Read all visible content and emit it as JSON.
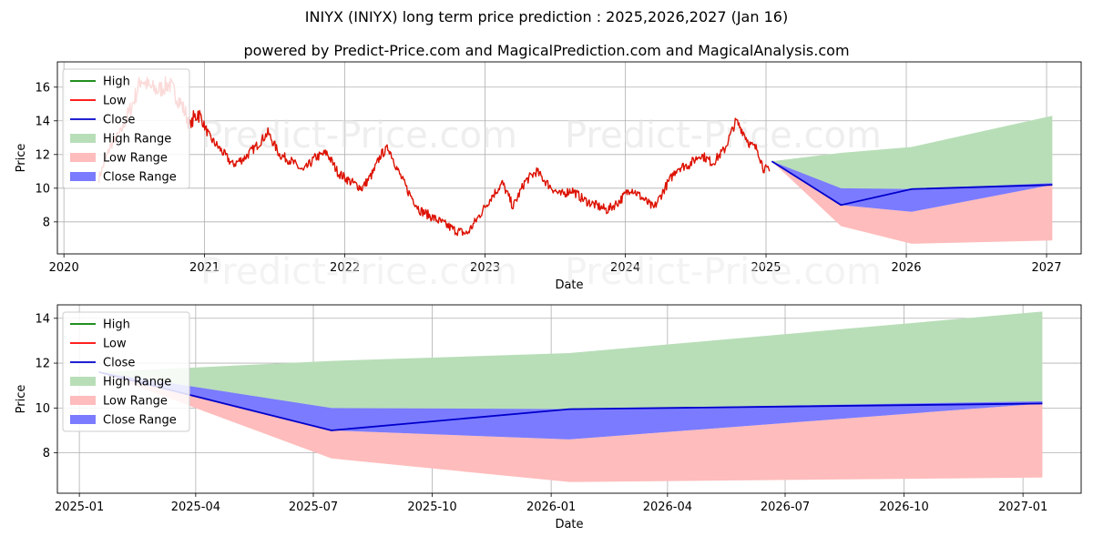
{
  "title": "INIYX (INIYX) long term price prediction : 2025,2026,2027 (Jan 16)",
  "subtitle": "powered by Predict-Price.com and MagicalPrediction.com and MagicalAnalysis.com",
  "watermark": "Predict-Price.com",
  "colors": {
    "high": "#008000",
    "low": "#ff0000",
    "close": "#0000cc",
    "high_range": "#b8deb8",
    "low_range": "#ffbcbc",
    "close_range": "#7b7bff",
    "history": "#dd1100"
  },
  "chart_data": [
    {
      "type": "line",
      "xlabel": "Date",
      "ylabel": "Price",
      "xlim": [
        "2019-12-15",
        "2027-04-01"
      ],
      "ylim": [
        6.1,
        17.5
      ],
      "yticks": [
        8,
        10,
        12,
        14,
        16
      ],
      "xticks": [
        {
          "date": "2020-01-01",
          "label": "2020"
        },
        {
          "date": "2021-01-01",
          "label": "2021"
        },
        {
          "date": "2022-01-01",
          "label": "2022"
        },
        {
          "date": "2023-01-01",
          "label": "2023"
        },
        {
          "date": "2024-01-01",
          "label": "2024"
        },
        {
          "date": "2025-01-01",
          "label": "2025"
        },
        {
          "date": "2026-01-01",
          "label": "2026"
        },
        {
          "date": "2027-01-01",
          "label": "2027"
        }
      ],
      "grid": true,
      "legend": "upper-left",
      "legend_entries": [
        "High",
        "Low",
        "Close",
        "High Range",
        "Low Range",
        "Close Range"
      ],
      "history": {
        "name": "Low",
        "x": [
          "2020-04-01",
          "2020-05-01",
          "2020-06-01",
          "2020-07-01",
          "2020-07-20",
          "2020-08-10",
          "2020-09-01",
          "2020-10-01",
          "2020-11-01",
          "2020-11-25",
          "2020-12-15",
          "2021-01-15",
          "2021-02-15",
          "2021-03-15",
          "2021-04-15",
          "2021-05-20",
          "2021-06-15",
          "2021-07-15",
          "2021-08-15",
          "2021-09-15",
          "2021-10-15",
          "2021-11-15",
          "2021-12-15",
          "2022-01-15",
          "2022-02-15",
          "2022-03-15",
          "2022-04-05",
          "2022-04-25",
          "2022-05-20",
          "2022-06-15",
          "2022-07-15",
          "2022-08-15",
          "2022-09-15",
          "2022-10-15",
          "2022-11-15",
          "2022-12-15",
          "2023-01-15",
          "2023-02-15",
          "2023-03-15",
          "2023-04-15",
          "2023-05-15",
          "2023-06-15",
          "2023-07-15",
          "2023-08-15",
          "2023-09-15",
          "2023-10-15",
          "2023-11-15",
          "2023-12-15",
          "2024-01-15",
          "2024-02-15",
          "2024-03-15",
          "2024-04-15",
          "2024-05-15",
          "2024-06-15",
          "2024-07-15",
          "2024-08-15",
          "2024-09-15",
          "2024-10-15",
          "2024-11-01",
          "2024-11-20",
          "2024-12-10",
          "2024-12-25",
          "2025-01-10"
        ],
        "y": [
          10.6,
          12.5,
          13.5,
          15.2,
          16.5,
          16.0,
          15.8,
          16.2,
          15.0,
          13.8,
          14.5,
          13.0,
          12.2,
          11.4,
          11.8,
          12.6,
          13.3,
          12.0,
          11.6,
          11.0,
          11.8,
          12.1,
          10.9,
          10.4,
          10.0,
          10.9,
          12.0,
          12.4,
          11.0,
          9.8,
          8.7,
          8.3,
          7.9,
          7.5,
          7.3,
          8.3,
          9.4,
          10.3,
          8.9,
          10.4,
          11.0,
          10.2,
          9.6,
          9.9,
          9.3,
          9.0,
          8.7,
          9.2,
          10.0,
          9.4,
          8.8,
          10.1,
          11.2,
          11.4,
          12.0,
          11.5,
          12.3,
          14.0,
          13.4,
          12.6,
          12.3,
          11.2,
          11.0
        ]
      },
      "forecast_close": {
        "name": "Close",
        "x": [
          "2025-01-16",
          "2025-07-15",
          "2026-01-15",
          "2027-01-16"
        ],
        "y": [
          11.6,
          9.0,
          9.95,
          10.2
        ]
      },
      "high_range": {
        "name": "High Range",
        "x": [
          "2025-01-16",
          "2025-07-15",
          "2026-01-15",
          "2027-01-16"
        ],
        "upper": [
          11.6,
          12.1,
          12.45,
          14.3
        ],
        "lower": [
          11.6,
          9.9,
          9.95,
          10.2
        ]
      },
      "low_range": {
        "name": "Low Range",
        "x": [
          "2025-01-16",
          "2025-07-15",
          "2026-01-15",
          "2027-01-16"
        ],
        "upper": [
          11.6,
          9.0,
          8.6,
          10.2
        ],
        "lower": [
          11.6,
          7.75,
          6.7,
          6.9
        ]
      },
      "close_range": {
        "name": "Close Range",
        "x": [
          "2025-01-16",
          "2025-07-15",
          "2026-01-15",
          "2027-01-16"
        ],
        "upper": [
          11.6,
          10.0,
          9.95,
          10.3
        ],
        "lower": [
          11.6,
          9.0,
          8.6,
          10.2
        ]
      }
    },
    {
      "type": "line",
      "xlabel": "Date",
      "ylabel": "Price",
      "xlim": [
        "2024-12-15",
        "2027-02-15"
      ],
      "ylim": [
        6.2,
        14.6
      ],
      "yticks": [
        8,
        10,
        12,
        14
      ],
      "xticks": [
        {
          "date": "2025-01-01",
          "label": "2025-01"
        },
        {
          "date": "2025-04-01",
          "label": "2025-04"
        },
        {
          "date": "2025-07-01",
          "label": "2025-07"
        },
        {
          "date": "2025-10-01",
          "label": "2025-10"
        },
        {
          "date": "2026-01-01",
          "label": "2026-01"
        },
        {
          "date": "2026-04-01",
          "label": "2026-04"
        },
        {
          "date": "2026-07-01",
          "label": "2026-07"
        },
        {
          "date": "2026-10-01",
          "label": "2026-10"
        },
        {
          "date": "2027-01-01",
          "label": "2027-01"
        }
      ],
      "grid": true,
      "legend": "upper-left",
      "legend_entries": [
        "High",
        "Low",
        "Close",
        "High Range",
        "Low Range",
        "Close Range"
      ],
      "forecast_close": {
        "name": "Close",
        "x": [
          "2025-01-16",
          "2025-07-15",
          "2026-01-15",
          "2027-01-16"
        ],
        "y": [
          11.6,
          9.0,
          9.95,
          10.2
        ]
      },
      "high_range": {
        "name": "High Range",
        "x": [
          "2025-01-16",
          "2025-07-15",
          "2026-01-15",
          "2027-01-16"
        ],
        "upper": [
          11.6,
          12.1,
          12.45,
          14.3
        ],
        "lower": [
          11.6,
          9.9,
          9.95,
          10.2
        ]
      },
      "low_range": {
        "name": "Low Range",
        "x": [
          "2025-01-16",
          "2025-07-15",
          "2026-01-15",
          "2027-01-16"
        ],
        "upper": [
          11.6,
          9.0,
          8.6,
          10.2
        ],
        "lower": [
          11.6,
          7.75,
          6.7,
          6.9
        ]
      },
      "close_range": {
        "name": "Close Range",
        "x": [
          "2025-01-16",
          "2025-07-15",
          "2026-01-15",
          "2027-01-16"
        ],
        "upper": [
          11.6,
          10.0,
          9.95,
          10.3
        ],
        "lower": [
          11.6,
          9.0,
          8.6,
          10.2
        ]
      }
    }
  ]
}
